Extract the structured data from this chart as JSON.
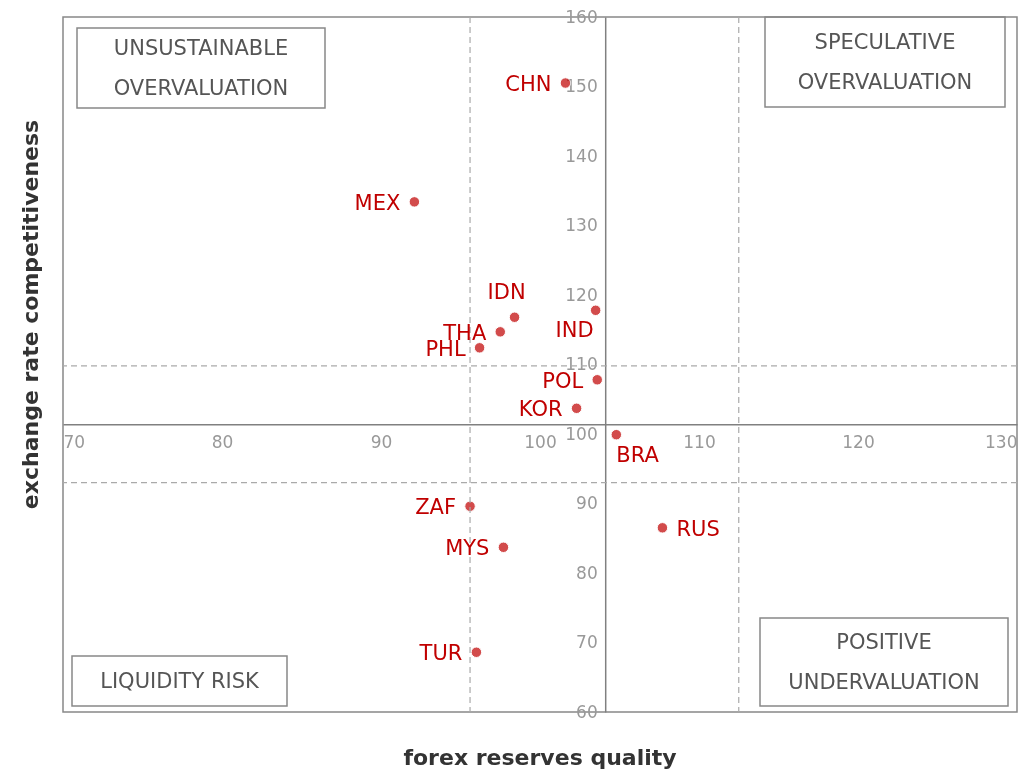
{
  "chart_data": {
    "type": "scatter",
    "xlabel": "forex reserves quality",
    "ylabel": "exchange rate competitiveness",
    "xlim": [
      70,
      130
    ],
    "ylim": [
      60,
      160
    ],
    "xticks": [
      70,
      80,
      90,
      100,
      110,
      120,
      130
    ],
    "yticks": [
      60,
      70,
      80,
      90,
      100,
      110,
      120,
      130,
      140,
      150,
      160
    ],
    "grid": false,
    "marker": "circle",
    "series": [
      {
        "color": "#c00000",
        "x": [
          101.6,
          92.1,
          98.4,
          97.5,
          96.2,
          103.5,
          103.6,
          102.3,
          104.8,
          95.6,
          107.7,
          97.7,
          96.0
        ],
        "values": [
          150.5,
          133.4,
          116.8,
          114.7,
          112.4,
          117.8,
          107.8,
          103.7,
          99.9,
          89.6,
          86.5,
          83.7,
          68.6
        ]
      }
    ],
    "ref_lines": [
      {
        "axis": "x",
        "value": 95.6,
        "line_style": "dashed",
        "color": "#aaaaaa"
      },
      {
        "axis": "x",
        "value": 112.5,
        "line_style": "dashed",
        "color": "#aaaaaa"
      },
      {
        "axis": "y",
        "value": 109.8,
        "line_style": "dashed",
        "color": "#aaaaaa"
      },
      {
        "axis": "y",
        "value": 93.0,
        "line_style": "dashed",
        "color": "#aaaaaa"
      }
    ],
    "annotations": [
      "UNSUSTAINABLE\nOVERVALUATION",
      "SPECULATIVE\nOVERVALUATION",
      "LIQUIDITY RISK",
      "POSITIVE\nUNDERVALUATION",
      {
        "text": "CHN",
        "x": 101.6,
        "y": 150.5
      },
      {
        "text": "MEX",
        "x": 92.1,
        "y": 133.4
      },
      {
        "text": "IDN",
        "x": 98.4,
        "y": 116.8
      },
      {
        "text": "THA",
        "x": 97.5,
        "y": 114.7
      },
      {
        "text": "PHL",
        "x": 96.2,
        "y": 112.4
      },
      {
        "text": "IND",
        "x": 103.5,
        "y": 117.8
      },
      {
        "text": "POL",
        "x": 103.6,
        "y": 107.8
      },
      {
        "text": "KOR",
        "x": 102.3,
        "y": 103.7
      },
      {
        "text": "BRA",
        "x": 104.8,
        "y": 99.9
      },
      {
        "text": "ZAF",
        "x": 95.6,
        "y": 89.6
      },
      {
        "text": "RUS",
        "x": 107.7,
        "y": 86.5
      },
      {
        "text": "MYS",
        "x": 97.7,
        "y": 83.7
      },
      {
        "text": "TUR",
        "x": 96.0,
        "y": 68.6
      }
    ]
  }
}
